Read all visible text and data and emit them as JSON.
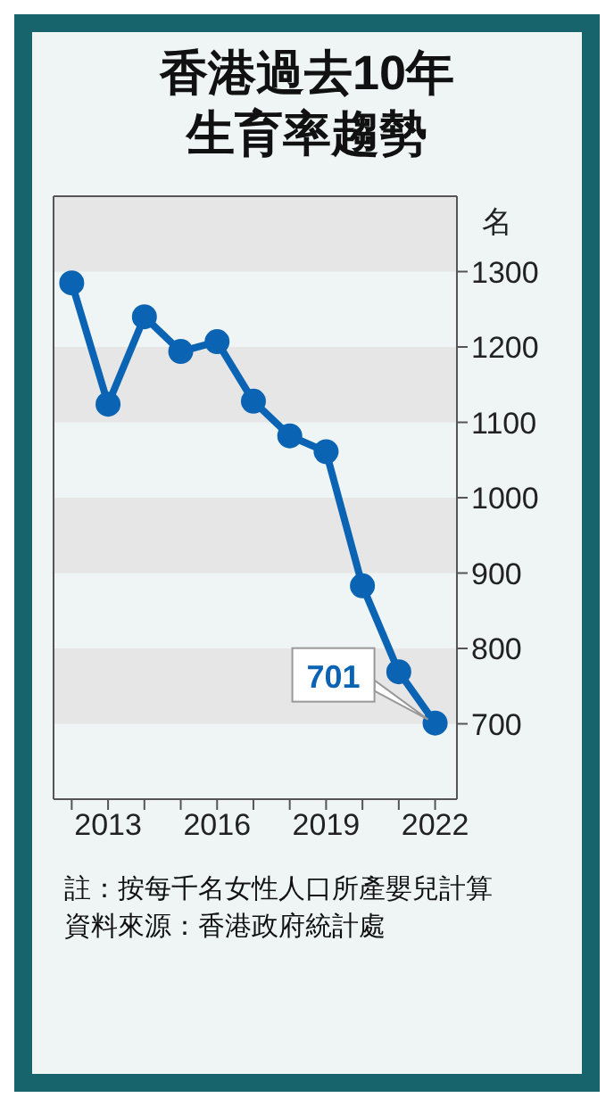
{
  "chart_data": {
    "type": "line",
    "title": "香港過去10年生育率趨勢",
    "ylabel": "名",
    "x": [
      2012,
      2013,
      2014,
      2015,
      2016,
      2017,
      2018,
      2019,
      2020,
      2021,
      2022
    ],
    "series": [
      {
        "color": "#0b63b3",
        "values": [
          1285,
          1124,
          1240,
          1194,
          1207,
          1128,
          1082,
          1061,
          883,
          769,
          701
        ]
      }
    ],
    "xlim": [
      2011.5,
      2022.6
    ],
    "xticks": [
      {
        "value": 2012,
        "label": null
      },
      2013,
      {
        "value": 2014,
        "label": null
      },
      {
        "value": 2015,
        "label": null
      },
      2016,
      {
        "value": 2017,
        "label": null
      },
      {
        "value": 2018,
        "label": null
      },
      2019,
      {
        "value": 2020,
        "label": null
      },
      {
        "value": 2021,
        "label": null
      },
      2022
    ],
    "ylim": [
      600,
      1400
    ],
    "yticks": [
      700,
      800,
      900,
      1000,
      1100,
      1200,
      1300
    ],
    "bands": [
      {
        "axis": "y",
        "from": 1300,
        "to": 1400,
        "color": "#e6e6e6"
      },
      {
        "axis": "y",
        "from": 1100,
        "to": 1200,
        "color": "#e6e6e6"
      },
      {
        "axis": "y",
        "from": 900,
        "to": 1000,
        "color": "#e6e6e6"
      },
      {
        "axis": "y",
        "from": 700,
        "to": 800,
        "color": "#e6e6e6"
      }
    ],
    "grid": false,
    "marker": "circle",
    "line_style": "solid",
    "annotations": [
      {
        "text": "701",
        "x": 2022,
        "y": 701
      },
      "註：按每千名女性人口所產嬰兒計算",
      "資料來源：香港政府統計處"
    ]
  }
}
